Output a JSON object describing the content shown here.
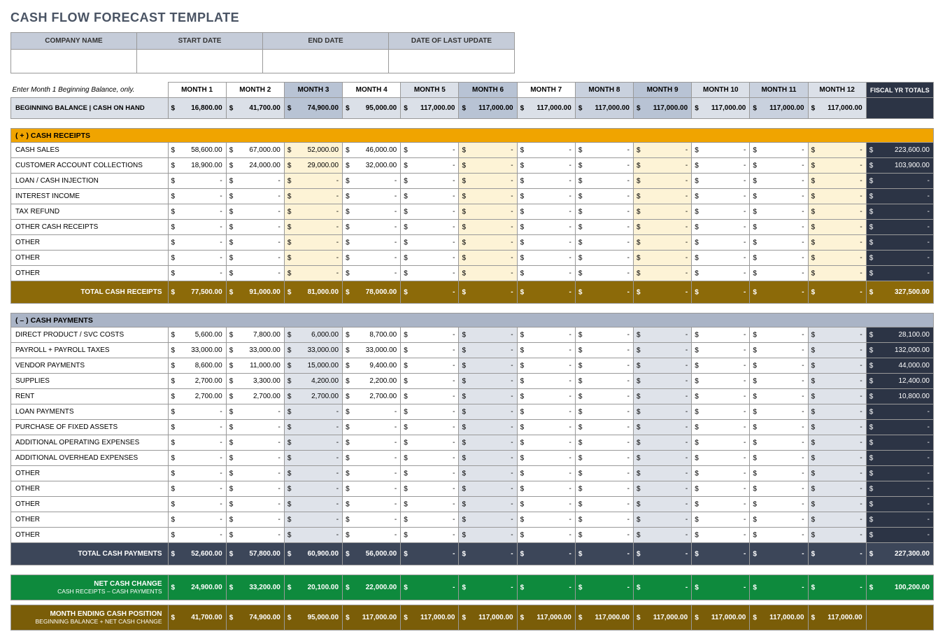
{
  "title": "CASH FLOW FORECAST TEMPLATE",
  "info_headers": [
    "COMPANY NAME",
    "START DATE",
    "END DATE",
    "DATE OF LAST UPDATE"
  ],
  "instruction": "Enter Month 1 Beginning Balance, only.",
  "months": [
    "MONTH 1",
    "MONTH 2",
    "MONTH 3",
    "MONTH 4",
    "MONTH 5",
    "MONTH 6",
    "MONTH 7",
    "MONTH 8",
    "MONTH 9",
    "MONTH 10",
    "MONTH 11",
    "MONTH 12"
  ],
  "fy_label": "FISCAL YR TOTALS",
  "month_shade": [
    "",
    "",
    "sh-a",
    "",
    "sh-b",
    "sh-a",
    "",
    "sh-c",
    "sh-a",
    "sh-b",
    "sh-c",
    "sh-b"
  ],
  "balance_shade": [
    "sh-b",
    "sh-b",
    "sh-a",
    "sh-b",
    "sh-b",
    "sh-a",
    "sh-b",
    "sh-c",
    "sh-a",
    "sh-b",
    "sh-c",
    "sh-b"
  ],
  "beginning_label": "BEGINNING BALANCE | CASH ON HAND",
  "beginning": [
    "16,800.00",
    "41,700.00",
    "74,900.00",
    "95,000.00",
    "117,000.00",
    "117,000.00",
    "117,000.00",
    "117,000.00",
    "117,000.00",
    "117,000.00",
    "117,000.00",
    "117,000.00"
  ],
  "receipts_header": "( + )  CASH RECEIPTS",
  "receipts_rows": [
    {
      "label": "CASH SALES",
      "v": [
        "58,600.00",
        "67,000.00",
        "52,000.00",
        "46,000.00",
        "-",
        "-",
        "-",
        "-",
        "-",
        "-",
        "-",
        "-"
      ],
      "tot": "223,600.00"
    },
    {
      "label": "CUSTOMER ACCOUNT COLLECTIONS",
      "v": [
        "18,900.00",
        "24,000.00",
        "29,000.00",
        "32,000.00",
        "-",
        "-",
        "-",
        "-",
        "-",
        "-",
        "-",
        "-"
      ],
      "tot": "103,900.00"
    },
    {
      "label": "LOAN / CASH INJECTION",
      "v": [
        "-",
        "-",
        "-",
        "-",
        "-",
        "-",
        "-",
        "-",
        "-",
        "-",
        "-",
        "-"
      ],
      "tot": "-"
    },
    {
      "label": "INTEREST INCOME",
      "v": [
        "-",
        "-",
        "-",
        "-",
        "-",
        "-",
        "-",
        "-",
        "-",
        "-",
        "-",
        "-"
      ],
      "tot": "-"
    },
    {
      "label": "TAX REFUND",
      "v": [
        "-",
        "-",
        "-",
        "-",
        "-",
        "-",
        "-",
        "-",
        "-",
        "-",
        "-",
        "-"
      ],
      "tot": "-"
    },
    {
      "label": "OTHER CASH RECEIPTS",
      "v": [
        "-",
        "-",
        "-",
        "-",
        "-",
        "-",
        "-",
        "-",
        "-",
        "-",
        "-",
        "-"
      ],
      "tot": "-"
    },
    {
      "label": "OTHER",
      "v": [
        "-",
        "-",
        "-",
        "-",
        "-",
        "-",
        "-",
        "-",
        "-",
        "-",
        "-",
        "-"
      ],
      "tot": "-"
    },
    {
      "label": "OTHER",
      "v": [
        "-",
        "-",
        "-",
        "-",
        "-",
        "-",
        "-",
        "-",
        "-",
        "-",
        "-",
        "-"
      ],
      "tot": "-"
    },
    {
      "label": "OTHER",
      "v": [
        "-",
        "-",
        "-",
        "-",
        "-",
        "-",
        "-",
        "-",
        "-",
        "-",
        "-",
        "-"
      ],
      "tot": "-"
    }
  ],
  "receipts_shade_cols": [
    2,
    5,
    8,
    11
  ],
  "total_receipts_label": "TOTAL CASH RECEIPTS",
  "total_receipts": [
    "77,500.00",
    "91,000.00",
    "81,000.00",
    "78,000.00",
    "-",
    "-",
    "-",
    "-",
    "-",
    "-",
    "-",
    "-"
  ],
  "total_receipts_fy": "327,500.00",
  "payments_header": "( – )  CASH PAYMENTS",
  "payments_rows": [
    {
      "label": "DIRECT PRODUCT / SVC COSTS",
      "v": [
        "5,600.00",
        "7,800.00",
        "6,000.00",
        "8,700.00",
        "-",
        "-",
        "-",
        "-",
        "-",
        "-",
        "-",
        "-"
      ],
      "tot": "28,100.00"
    },
    {
      "label": "PAYROLL + PAYROLL TAXES",
      "v": [
        "33,000.00",
        "33,000.00",
        "33,000.00",
        "33,000.00",
        "-",
        "-",
        "-",
        "-",
        "-",
        "-",
        "-",
        "-"
      ],
      "tot": "132,000.00"
    },
    {
      "label": "VENDOR PAYMENTS",
      "v": [
        "8,600.00",
        "11,000.00",
        "15,000.00",
        "9,400.00",
        "-",
        "-",
        "-",
        "-",
        "-",
        "-",
        "-",
        "-"
      ],
      "tot": "44,000.00"
    },
    {
      "label": "SUPPLIES",
      "v": [
        "2,700.00",
        "3,300.00",
        "4,200.00",
        "2,200.00",
        "-",
        "-",
        "-",
        "-",
        "-",
        "-",
        "-",
        "-"
      ],
      "tot": "12,400.00"
    },
    {
      "label": "RENT",
      "v": [
        "2,700.00",
        "2,700.00",
        "2,700.00",
        "2,700.00",
        "-",
        "-",
        "-",
        "-",
        "-",
        "-",
        "-",
        "-"
      ],
      "tot": "10,800.00"
    },
    {
      "label": "LOAN PAYMENTS",
      "v": [
        "-",
        "-",
        "-",
        "-",
        "-",
        "-",
        "-",
        "-",
        "-",
        "-",
        "-",
        "-"
      ],
      "tot": "-"
    },
    {
      "label": "PURCHASE OF FIXED ASSETS",
      "v": [
        "-",
        "-",
        "-",
        "-",
        "-",
        "-",
        "-",
        "-",
        "-",
        "-",
        "-",
        "-"
      ],
      "tot": "-"
    },
    {
      "label": "ADDITIONAL OPERATING EXPENSES",
      "v": [
        "-",
        "-",
        "-",
        "-",
        "-",
        "-",
        "-",
        "-",
        "-",
        "-",
        "-",
        "-"
      ],
      "tot": "-"
    },
    {
      "label": "ADDITIONAL OVERHEAD EXPENSES",
      "v": [
        "-",
        "-",
        "-",
        "-",
        "-",
        "-",
        "-",
        "-",
        "-",
        "-",
        "-",
        "-"
      ],
      "tot": "-"
    },
    {
      "label": "OTHER",
      "v": [
        "-",
        "-",
        "-",
        "-",
        "-",
        "-",
        "-",
        "-",
        "-",
        "-",
        "-",
        "-"
      ],
      "tot": "-"
    },
    {
      "label": "OTHER",
      "v": [
        "-",
        "-",
        "-",
        "-",
        "-",
        "-",
        "-",
        "-",
        "-",
        "-",
        "-",
        "-"
      ],
      "tot": "-"
    },
    {
      "label": "OTHER",
      "v": [
        "-",
        "-",
        "-",
        "-",
        "-",
        "-",
        "-",
        "-",
        "-",
        "-",
        "-",
        "-"
      ],
      "tot": "-"
    },
    {
      "label": "OTHER",
      "v": [
        "-",
        "-",
        "-",
        "-",
        "-",
        "-",
        "-",
        "-",
        "-",
        "-",
        "-",
        "-"
      ],
      "tot": "-"
    },
    {
      "label": "OTHER",
      "v": [
        "-",
        "-",
        "-",
        "-",
        "-",
        "-",
        "-",
        "-",
        "-",
        "-",
        "-",
        "-"
      ],
      "tot": "-"
    }
  ],
  "payments_shade_cols": [
    2,
    5,
    8,
    11
  ],
  "total_payments_label": "TOTAL CASH PAYMENTS",
  "total_payments": [
    "52,600.00",
    "57,800.00",
    "60,900.00",
    "56,000.00",
    "-",
    "-",
    "-",
    "-",
    "-",
    "-",
    "-",
    "-"
  ],
  "total_payments_fy": "227,300.00",
  "net_label": "NET CASH CHANGE",
  "net_sub": "CASH RECEIPTS – CASH PAYMENTS",
  "net": [
    "24,900.00",
    "33,200.00",
    "20,100.00",
    "22,000.00",
    "-",
    "-",
    "-",
    "-",
    "-",
    "-",
    "-",
    "-"
  ],
  "net_fy": "100,200.00",
  "ending_label": "MONTH ENDING CASH POSITION",
  "ending_sub": "BEGINNING BALANCE + NET CASH CHANGE",
  "ending": [
    "41,700.00",
    "74,900.00",
    "95,000.00",
    "117,000.00",
    "117,000.00",
    "117,000.00",
    "117,000.00",
    "117,000.00",
    "117,000.00",
    "117,000.00",
    "117,000.00",
    "117,000.00"
  ],
  "colors": {
    "title": "#4a5464",
    "receipts_bar": "#f0a400",
    "payments_bar": "#aab4c6",
    "receipts_total": "#8c6a09",
    "payments_total": "#3c4659",
    "net": "#0e8a3d",
    "ending": "#7a5d08",
    "fy": "#2c3445"
  }
}
